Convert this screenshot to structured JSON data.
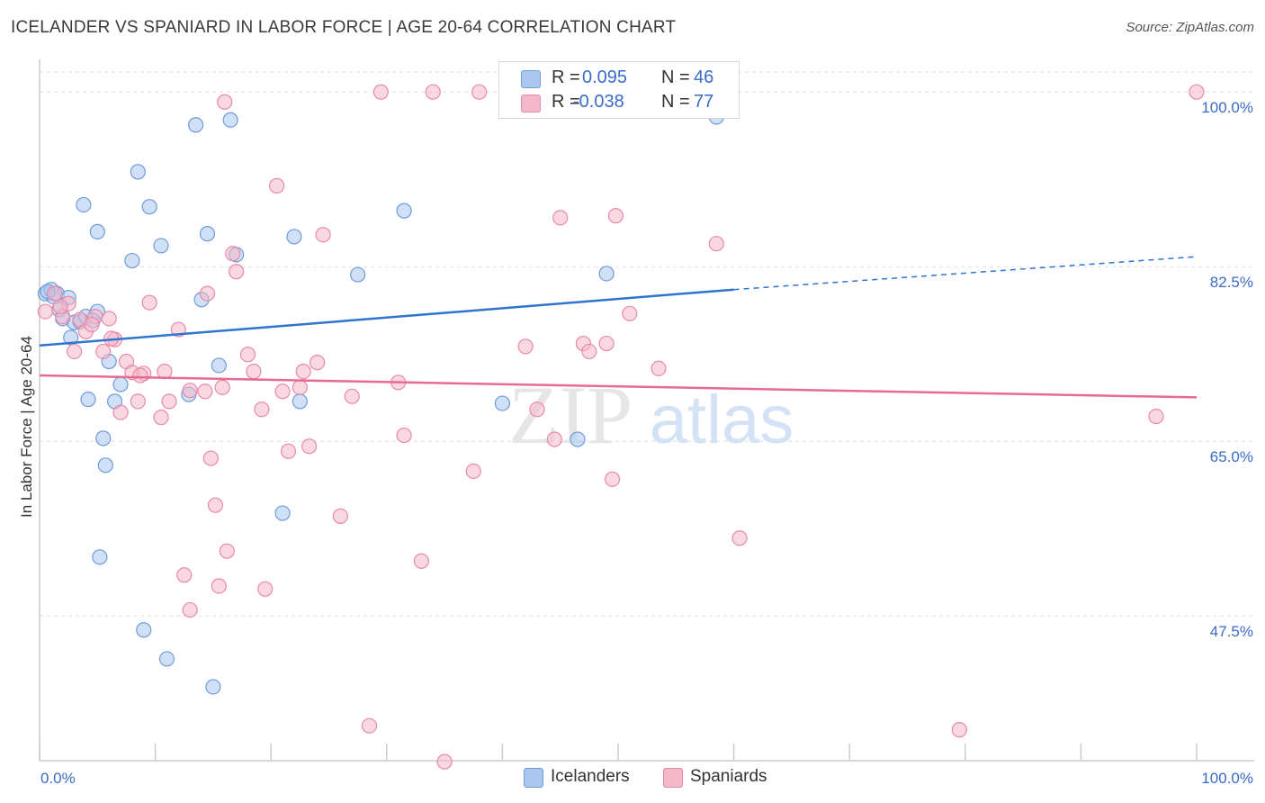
{
  "title": "ICELANDER VS SPANIARD IN LABOR FORCE | AGE 20-64 CORRELATION CHART",
  "source": "Source: ZipAtlas.com",
  "watermark": {
    "zip": "ZIP",
    "atlas": "atlas"
  },
  "stats": {
    "row1": {
      "r_label": "R =",
      "r_value": "0.095",
      "n_label": "N =",
      "n_value": "46"
    },
    "row2": {
      "r_label": "R =",
      "r_value": "-0.038",
      "n_label": "N =",
      "n_value": "77"
    }
  },
  "legend": {
    "icelanders": "Icelanders",
    "spaniards": "Spaniards"
  },
  "colors": {
    "blue_fill": "#a9c7f0",
    "blue_stroke": "#6f9bd8",
    "blue_line": "#2f74d0",
    "pink_fill": "#f5b8cb",
    "pink_stroke": "#e88aa8",
    "pink_line": "#e66a94",
    "tick_text": "#3a6bc8",
    "grid": "#dddddd"
  },
  "chart_data": {
    "type": "scatter",
    "title": "ICELANDER VS SPANIARD IN LABOR FORCE | AGE 20-64 CORRELATION CHART",
    "xlabel": "",
    "ylabel": "In Labor Force | Age 20-64",
    "xlim": [
      0,
      100
    ],
    "ylim": [
      33,
      102
    ],
    "x_tick_labels": [
      "0.0%",
      "100.0%"
    ],
    "y_ticks": [
      {
        "value": 100.0,
        "label": "100.0%"
      },
      {
        "value": 82.5,
        "label": "82.5%"
      },
      {
        "value": 65.0,
        "label": "65.0%"
      },
      {
        "value": 47.5,
        "label": "47.5%"
      }
    ],
    "grid": "horizontal dashed",
    "legend_position": "bottom-center",
    "series": [
      {
        "name": "Icelanders",
        "color": "#a9c7f0",
        "trend": {
          "x": [
            0,
            60
          ],
          "y": [
            74.6,
            80.2
          ],
          "dashed_to": [
            100,
            83.5
          ]
        },
        "points": [
          [
            0.5,
            79.8
          ],
          [
            1.0,
            80.2
          ],
          [
            1.2,
            79.5
          ],
          [
            1.5,
            79.8
          ],
          [
            2.0,
            77.3
          ],
          [
            2.5,
            79.4
          ],
          [
            3.0,
            76.9
          ],
          [
            3.5,
            77.0
          ],
          [
            4.0,
            77.5
          ],
          [
            2.7,
            75.4
          ],
          [
            5.0,
            78.0
          ],
          [
            6.0,
            73.0
          ],
          [
            7.0,
            70.7
          ],
          [
            8.0,
            83.1
          ],
          [
            9.5,
            88.5
          ],
          [
            8.5,
            92.0
          ],
          [
            10.5,
            84.6
          ],
          [
            13.5,
            96.7
          ],
          [
            16.5,
            97.2
          ],
          [
            14.5,
            85.8
          ],
          [
            14.0,
            79.2
          ],
          [
            17.0,
            83.7
          ],
          [
            15.5,
            72.6
          ],
          [
            22.0,
            85.5
          ],
          [
            22.5,
            69.0
          ],
          [
            27.5,
            81.7
          ],
          [
            31.5,
            88.1
          ],
          [
            3.8,
            88.7
          ],
          [
            5.0,
            86.0
          ],
          [
            4.2,
            69.2
          ],
          [
            5.5,
            65.3
          ],
          [
            5.7,
            62.6
          ],
          [
            6.5,
            69.0
          ],
          [
            12.9,
            69.7
          ],
          [
            21.0,
            57.8
          ],
          [
            5.2,
            53.4
          ],
          [
            9.0,
            46.1
          ],
          [
            11.0,
            43.2
          ],
          [
            15.0,
            40.4
          ],
          [
            40.0,
            68.8
          ],
          [
            46.5,
            65.2
          ],
          [
            49.0,
            81.8
          ],
          [
            58.5,
            97.5
          ],
          [
            0.7,
            80.0
          ],
          [
            1.7,
            78.2
          ],
          [
            4.6,
            77.1
          ]
        ]
      },
      {
        "name": "Spaniards",
        "color": "#f5b8cb",
        "trend": {
          "x": [
            0,
            100
          ],
          "y": [
            71.6,
            69.4
          ]
        },
        "points": [
          [
            0.5,
            78.0
          ],
          [
            1.3,
            79.8
          ],
          [
            2.0,
            77.5
          ],
          [
            2.5,
            78.8
          ],
          [
            3.5,
            77.2
          ],
          [
            4.0,
            76.0
          ],
          [
            4.8,
            77.5
          ],
          [
            5.5,
            74.0
          ],
          [
            6.0,
            77.3
          ],
          [
            6.5,
            75.2
          ],
          [
            7.5,
            73.0
          ],
          [
            8.0,
            71.9
          ],
          [
            8.5,
            69.0
          ],
          [
            9.0,
            71.8
          ],
          [
            9.5,
            78.9
          ],
          [
            10.5,
            67.4
          ],
          [
            10.8,
            72.0
          ],
          [
            11.2,
            69.0
          ],
          [
            12.0,
            76.2
          ],
          [
            13.0,
            70.1
          ],
          [
            14.3,
            70.0
          ],
          [
            14.5,
            79.8
          ],
          [
            14.8,
            63.3
          ],
          [
            15.2,
            58.6
          ],
          [
            15.8,
            70.4
          ],
          [
            16.2,
            54.0
          ],
          [
            16.7,
            83.8
          ],
          [
            17.0,
            82.0
          ],
          [
            18.0,
            73.7
          ],
          [
            18.5,
            72.0
          ],
          [
            19.2,
            68.2
          ],
          [
            19.5,
            50.2
          ],
          [
            20.5,
            90.6
          ],
          [
            21.0,
            70.0
          ],
          [
            21.5,
            64.0
          ],
          [
            22.5,
            70.4
          ],
          [
            22.8,
            72.0
          ],
          [
            23.3,
            64.5
          ],
          [
            24.0,
            72.9
          ],
          [
            24.5,
            85.7
          ],
          [
            26.0,
            57.5
          ],
          [
            27.0,
            69.5
          ],
          [
            28.5,
            36.5
          ],
          [
            29.5,
            100.0
          ],
          [
            31.0,
            70.9
          ],
          [
            31.5,
            65.6
          ],
          [
            33.0,
            53.0
          ],
          [
            34.0,
            100.0
          ],
          [
            35.0,
            32.9
          ],
          [
            37.5,
            62.0
          ],
          [
            38.0,
            100.0
          ],
          [
            42.0,
            74.5
          ],
          [
            43.0,
            68.2
          ],
          [
            44.5,
            65.2
          ],
          [
            45.0,
            87.4
          ],
          [
            47.0,
            74.8
          ],
          [
            47.5,
            74.0
          ],
          [
            49.0,
            74.8
          ],
          [
            49.5,
            61.2
          ],
          [
            49.8,
            87.6
          ],
          [
            51.0,
            77.8
          ],
          [
            53.5,
            72.3
          ],
          [
            58.5,
            84.8
          ],
          [
            60.5,
            55.3
          ],
          [
            79.5,
            36.1
          ],
          [
            96.5,
            67.5
          ],
          [
            100.0,
            100.0
          ],
          [
            3.0,
            74.0
          ],
          [
            7.0,
            67.9
          ],
          [
            12.5,
            51.6
          ],
          [
            13.0,
            48.1
          ],
          [
            15.5,
            50.5
          ],
          [
            16.0,
            99.0
          ],
          [
            1.8,
            78.5
          ],
          [
            4.5,
            76.7
          ],
          [
            6.2,
            75.3
          ],
          [
            8.7,
            71.6
          ]
        ]
      }
    ]
  }
}
